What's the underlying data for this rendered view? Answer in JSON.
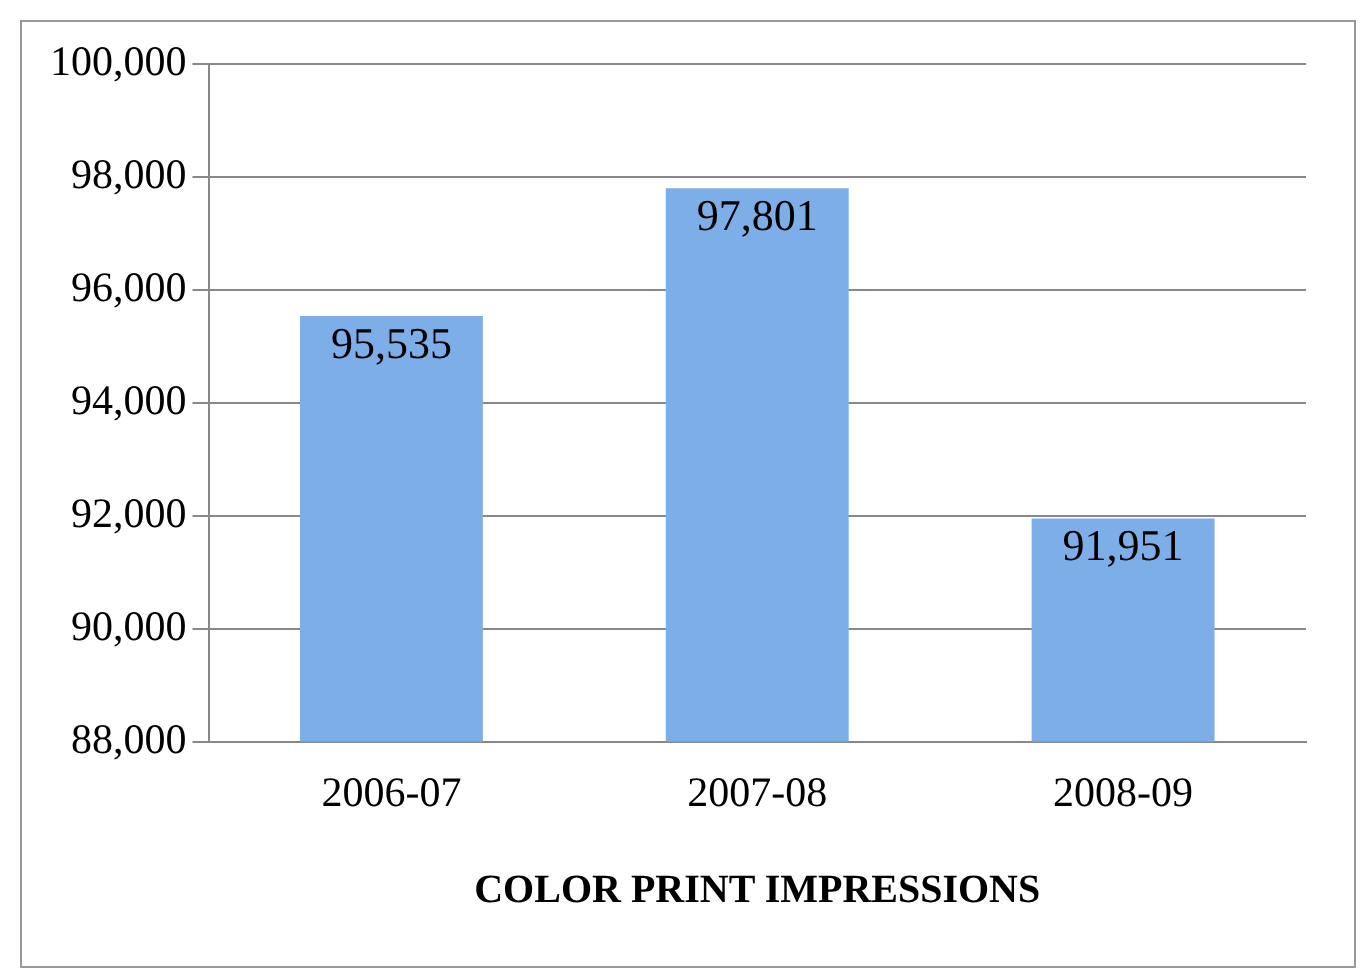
{
  "chart_data": {
    "type": "bar",
    "xlabel": "COLOR PRINT IMPRESSIONS",
    "categories": [
      "2006-07",
      "2007-08",
      "2008-09"
    ],
    "values": [
      95535,
      97801,
      91951
    ],
    "color": "#7eaee8",
    "ylim": [
      88000,
      100000
    ],
    "yticks": [
      {
        "value": 88000,
        "label": "88,000"
      },
      {
        "value": 90000,
        "label": "90,000"
      },
      {
        "value": 92000,
        "label": "92,000"
      },
      {
        "value": 94000,
        "label": "94,000"
      },
      {
        "value": 96000,
        "label": "96,000"
      },
      {
        "value": 98000,
        "label": "98,000"
      },
      {
        "value": 100000,
        "label": "100,000"
      }
    ],
    "value_labels": [
      "95,535",
      "97,801",
      "91,951"
    ],
    "grid": "y",
    "legend": false
  }
}
